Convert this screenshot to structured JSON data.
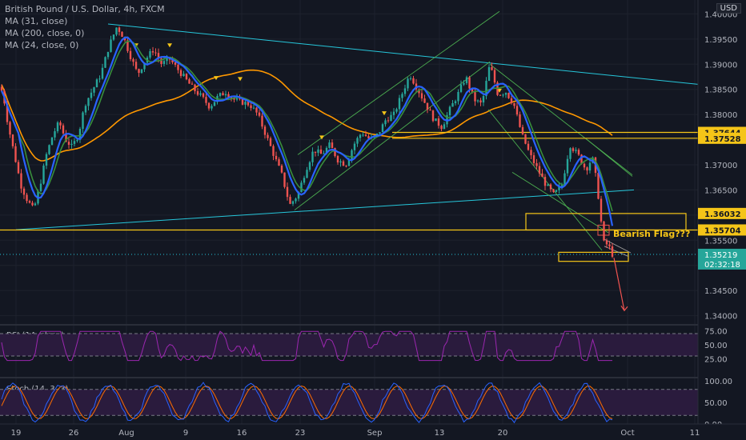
{
  "header": {
    "title": "British Pound / U.S. Dollar, 4h, FXCM",
    "indicators": [
      "MA (31, close)",
      "MA (200, close, 0)",
      "MA (24, close, 0)"
    ],
    "currency": "USD"
  },
  "rsi": {
    "label": "RSI (14, close)",
    "ticks": [
      "75.00",
      "50.00",
      "25.00"
    ]
  },
  "stoch": {
    "label": "Stoch (14, 3, 3)",
    "ticks": [
      "100.00",
      "50.00",
      "0.00"
    ]
  },
  "annotations": {
    "flag_label": "Bearish Flag???"
  },
  "price_tags": {
    "levels": [
      "1.37644",
      "1.37528",
      "1.36032",
      "1.35704"
    ],
    "current": "1.35219",
    "countdown": "02:32:18"
  },
  "colors": {
    "background": "#131722",
    "bull": "#26a69a",
    "bear": "#ef5350",
    "ma31": "#2962ff",
    "ma200": "#ff9800",
    "ma24": "#388e3c",
    "trendline": "#26c6da",
    "channel": "#4caf50",
    "level": "#f5c518",
    "rsi": "#9c27b0",
    "stoch_k": "#2962ff",
    "stoch_d": "#ff6d00"
  },
  "chart_data": {
    "type": "candlestick",
    "title": "British Pound / U.S. Dollar, 4h, FXCM",
    "ylim": [
      1.3385,
      1.4015
    ],
    "y_ticks": [
      "1.40000",
      "1.39500",
      "1.39000",
      "1.38500",
      "1.38000",
      "1.37500",
      "1.37000",
      "1.36500",
      "1.36000",
      "1.35500",
      "1.35000",
      "1.34500",
      "1.34000"
    ],
    "x_ticks": [
      "19",
      "26",
      "Aug",
      "9",
      "16",
      "23",
      "Sep",
      "13",
      "20",
      "Oct",
      "11"
    ],
    "price_path": [
      [
        0,
        1.3855
      ],
      [
        4,
        1.384
      ],
      [
        10,
        1.378
      ],
      [
        18,
        1.372
      ],
      [
        26,
        1.366
      ],
      [
        34,
        1.363
      ],
      [
        42,
        1.361
      ],
      [
        50,
        1.366
      ],
      [
        58,
        1.372
      ],
      [
        66,
        1.376
      ],
      [
        74,
        1.3785
      ],
      [
        82,
        1.375
      ],
      [
        90,
        1.3735
      ],
      [
        98,
        1.376
      ],
      [
        106,
        1.382
      ],
      [
        116,
        1.385
      ],
      [
        126,
        1.388
      ],
      [
        136,
        1.3935
      ],
      [
        146,
        1.3975
      ],
      [
        154,
        1.3955
      ],
      [
        162,
        1.392
      ],
      [
        172,
        1.388
      ],
      [
        182,
        1.391
      ],
      [
        192,
        1.393
      ],
      [
        202,
        1.39
      ],
      [
        212,
        1.391
      ],
      [
        222,
        1.389
      ],
      [
        232,
        1.387
      ],
      [
        242,
        1.385
      ],
      [
        252,
        1.3835
      ],
      [
        262,
        1.3815
      ],
      [
        272,
        1.3835
      ],
      [
        282,
        1.3845
      ],
      [
        292,
        1.383
      ],
      [
        302,
        1.3825
      ],
      [
        312,
        1.382
      ],
      [
        322,
        1.38
      ],
      [
        332,
        1.376
      ],
      [
        342,
        1.372
      ],
      [
        352,
        1.368
      ],
      [
        362,
        1.362
      ],
      [
        372,
        1.364
      ],
      [
        382,
        1.369
      ],
      [
        392,
        1.373
      ],
      [
        402,
        1.372
      ],
      [
        412,
        1.374
      ],
      [
        422,
        1.371
      ],
      [
        432,
        1.37
      ],
      [
        442,
        1.374
      ],
      [
        452,
        1.3765
      ],
      [
        462,
        1.375
      ],
      [
        472,
        1.376
      ],
      [
        482,
        1.379
      ],
      [
        492,
        1.38
      ],
      [
        502,
        1.384
      ],
      [
        512,
        1.388
      ],
      [
        522,
        1.385
      ],
      [
        532,
        1.382
      ],
      [
        542,
        1.379
      ],
      [
        552,
        1.3775
      ],
      [
        562,
        1.381
      ],
      [
        572,
        1.384
      ],
      [
        582,
        1.3875
      ],
      [
        592,
        1.383
      ],
      [
        602,
        1.382
      ],
      [
        612,
        1.39
      ],
      [
        622,
        1.384
      ],
      [
        632,
        1.3845
      ],
      [
        642,
        1.382
      ],
      [
        652,
        1.376
      ],
      [
        662,
        1.372
      ],
      [
        672,
        1.369
      ],
      [
        682,
        1.366
      ],
      [
        692,
        1.364
      ],
      [
        702,
        1.366
      ],
      [
        712,
        1.374
      ],
      [
        722,
        1.372
      ],
      [
        732,
        1.369
      ],
      [
        740,
        1.3715
      ],
      [
        746,
        1.366
      ],
      [
        750,
        1.36
      ],
      [
        754,
        1.3545
      ],
      [
        760,
        1.354
      ],
      [
        765,
        1.3522
      ]
    ],
    "levels": [
      1.37644,
      1.37528,
      1.36032,
      1.35704
    ],
    "current_price": 1.35219
  }
}
